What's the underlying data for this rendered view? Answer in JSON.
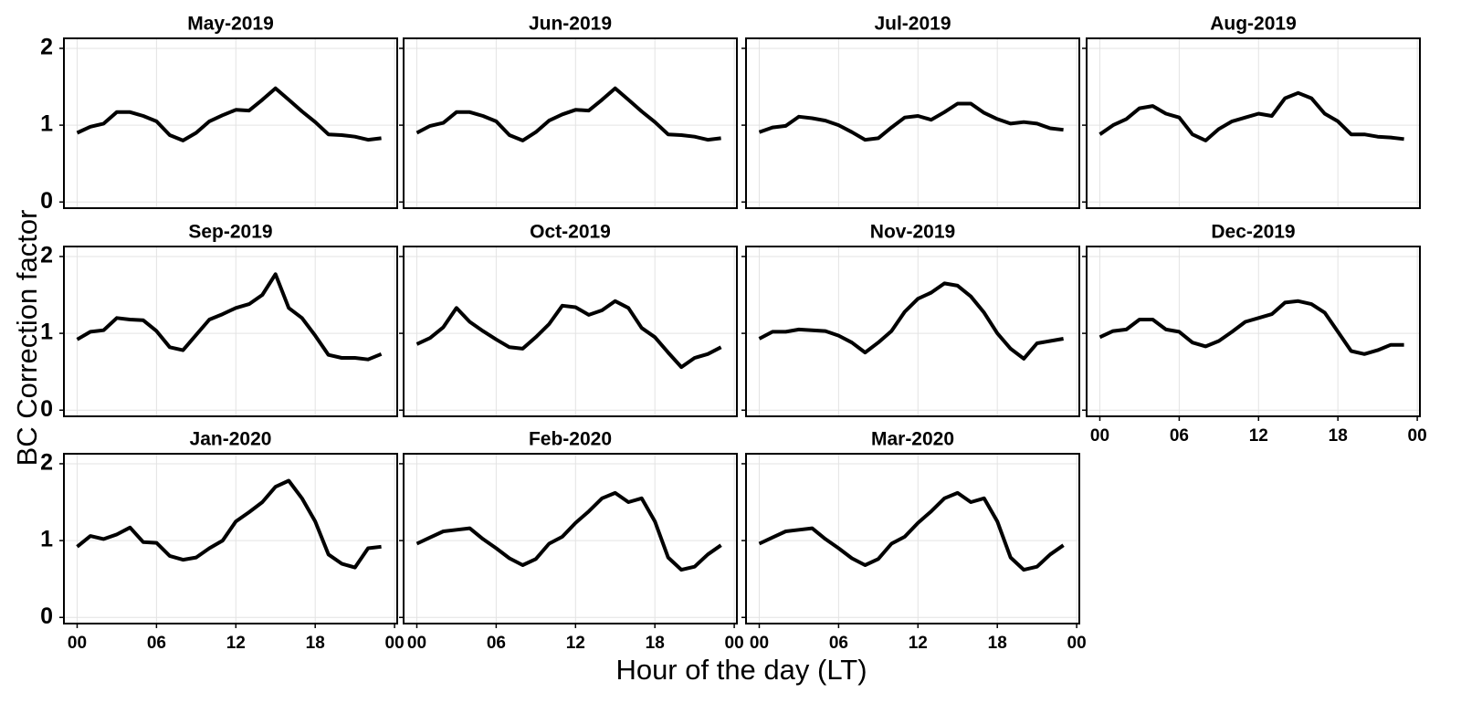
{
  "ylabel": "BC Correction factor",
  "xlabel": "Hour of the day (LT)",
  "chart_data": [
    {
      "type": "line",
      "title": "May-2019",
      "color": "#000000",
      "grid": true,
      "show_xtick_labels": false,
      "show_ytick_labels": true,
      "xlim": [
        -1,
        24.2
      ],
      "ylim": [
        -0.08,
        2.13
      ],
      "xticks": [
        {
          "value": 0,
          "label": "00"
        },
        {
          "value": 6,
          "label": "06"
        },
        12,
        18,
        {
          "value": 24,
          "label": "00"
        }
      ],
      "yticks": [
        0,
        1,
        2
      ],
      "x": [
        0,
        1,
        2,
        3,
        4,
        5,
        6,
        7,
        8,
        9,
        10,
        11,
        12,
        13,
        14,
        15,
        16,
        17,
        18,
        19,
        20,
        21,
        22,
        23
      ],
      "values": [
        0.9,
        0.98,
        1.02,
        1.17,
        1.17,
        1.12,
        1.05,
        0.87,
        0.8,
        0.9,
        1.05,
        1.13,
        1.2,
        1.19,
        1.33,
        1.48,
        1.33,
        1.18,
        1.04,
        0.88,
        0.87,
        0.85,
        0.81,
        0.83
      ]
    },
    {
      "type": "line",
      "title": "Jun-2019",
      "color": "#000000",
      "grid": true,
      "show_xtick_labels": false,
      "show_ytick_labels": false,
      "xlim": [
        -1,
        24.2
      ],
      "ylim": [
        -0.08,
        2.13
      ],
      "xticks": [
        {
          "value": 0,
          "label": "00"
        },
        {
          "value": 6,
          "label": "06"
        },
        12,
        18,
        {
          "value": 24,
          "label": "00"
        }
      ],
      "yticks": [
        0,
        1,
        2
      ],
      "x": [
        0,
        1,
        2,
        3,
        4,
        5,
        6,
        7,
        8,
        9,
        10,
        11,
        12,
        13,
        14,
        15,
        16,
        17,
        18,
        19,
        20,
        21,
        22,
        23
      ],
      "values": [
        0.9,
        0.99,
        1.03,
        1.17,
        1.17,
        1.12,
        1.05,
        0.87,
        0.8,
        0.91,
        1.06,
        1.14,
        1.2,
        1.19,
        1.33,
        1.48,
        1.33,
        1.18,
        1.04,
        0.88,
        0.87,
        0.85,
        0.81,
        0.83
      ]
    },
    {
      "type": "line",
      "title": "Jul-2019",
      "color": "#000000",
      "grid": true,
      "show_xtick_labels": false,
      "show_ytick_labels": false,
      "xlim": [
        -1,
        24.2
      ],
      "ylim": [
        -0.08,
        2.13
      ],
      "xticks": [
        {
          "value": 0,
          "label": "00"
        },
        {
          "value": 6,
          "label": "06"
        },
        12,
        18,
        {
          "value": 24,
          "label": "00"
        }
      ],
      "yticks": [
        0,
        1,
        2
      ],
      "x": [
        0,
        1,
        2,
        3,
        4,
        5,
        6,
        7,
        8,
        9,
        10,
        11,
        12,
        13,
        14,
        15,
        16,
        17,
        18,
        19,
        20,
        21,
        22,
        23
      ],
      "values": [
        0.91,
        0.97,
        0.99,
        1.11,
        1.09,
        1.06,
        1.0,
        0.91,
        0.81,
        0.83,
        0.97,
        1.1,
        1.12,
        1.07,
        1.17,
        1.28,
        1.28,
        1.16,
        1.08,
        1.02,
        1.04,
        1.02,
        0.96,
        0.94
      ]
    },
    {
      "type": "line",
      "title": "Aug-2019",
      "color": "#000000",
      "grid": true,
      "show_xtick_labels": false,
      "show_ytick_labels": false,
      "xlim": [
        -1,
        24.2
      ],
      "ylim": [
        -0.08,
        2.13
      ],
      "xticks": [
        {
          "value": 0,
          "label": "00"
        },
        {
          "value": 6,
          "label": "06"
        },
        12,
        18,
        {
          "value": 24,
          "label": "00"
        }
      ],
      "yticks": [
        0,
        1,
        2
      ],
      "x": [
        0,
        1,
        2,
        3,
        4,
        5,
        6,
        7,
        8,
        9,
        10,
        11,
        12,
        13,
        14,
        15,
        16,
        17,
        18,
        19,
        20,
        21,
        22,
        23
      ],
      "values": [
        0.88,
        1.0,
        1.08,
        1.22,
        1.25,
        1.15,
        1.1,
        0.88,
        0.8,
        0.95,
        1.05,
        1.1,
        1.15,
        1.12,
        1.35,
        1.42,
        1.35,
        1.15,
        1.05,
        0.88,
        0.88,
        0.85,
        0.84,
        0.82
      ]
    },
    {
      "type": "line",
      "title": "Sep-2019",
      "color": "#000000",
      "grid": true,
      "show_xtick_labels": false,
      "show_ytick_labels": true,
      "xlim": [
        -1,
        24.2
      ],
      "ylim": [
        -0.08,
        2.13
      ],
      "xticks": [
        {
          "value": 0,
          "label": "00"
        },
        {
          "value": 6,
          "label": "06"
        },
        12,
        18,
        {
          "value": 24,
          "label": "00"
        }
      ],
      "yticks": [
        0,
        1,
        2
      ],
      "x": [
        0,
        1,
        2,
        3,
        4,
        5,
        6,
        7,
        8,
        9,
        10,
        11,
        12,
        13,
        14,
        15,
        16,
        17,
        18,
        19,
        20,
        21,
        22,
        23
      ],
      "values": [
        0.92,
        1.02,
        1.04,
        1.2,
        1.18,
        1.17,
        1.03,
        0.82,
        0.78,
        0.98,
        1.18,
        1.25,
        1.33,
        1.38,
        1.5,
        1.77,
        1.33,
        1.2,
        0.97,
        0.72,
        0.68,
        0.68,
        0.66,
        0.73
      ]
    },
    {
      "type": "line",
      "title": "Oct-2019",
      "color": "#000000",
      "grid": true,
      "show_xtick_labels": false,
      "show_ytick_labels": false,
      "xlim": [
        -1,
        24.2
      ],
      "ylim": [
        -0.08,
        2.13
      ],
      "xticks": [
        {
          "value": 0,
          "label": "00"
        },
        {
          "value": 6,
          "label": "06"
        },
        12,
        18,
        {
          "value": 24,
          "label": "00"
        }
      ],
      "yticks": [
        0,
        1,
        2
      ],
      "x": [
        0,
        1,
        2,
        3,
        4,
        5,
        6,
        7,
        8,
        9,
        10,
        11,
        12,
        13,
        14,
        15,
        16,
        17,
        18,
        19,
        20,
        21,
        22,
        23
      ],
      "values": [
        0.86,
        0.94,
        1.08,
        1.33,
        1.15,
        1.03,
        0.92,
        0.82,
        0.8,
        0.95,
        1.12,
        1.36,
        1.34,
        1.24,
        1.3,
        1.42,
        1.33,
        1.07,
        0.95,
        0.75,
        0.56,
        0.68,
        0.73,
        0.82
      ]
    },
    {
      "type": "line",
      "title": "Nov-2019",
      "color": "#000000",
      "grid": true,
      "show_xtick_labels": false,
      "show_ytick_labels": false,
      "xlim": [
        -1,
        24.2
      ],
      "ylim": [
        -0.08,
        2.13
      ],
      "xticks": [
        {
          "value": 0,
          "label": "00"
        },
        {
          "value": 6,
          "label": "06"
        },
        12,
        18,
        {
          "value": 24,
          "label": "00"
        }
      ],
      "yticks": [
        0,
        1,
        2
      ],
      "x": [
        0,
        1,
        2,
        3,
        4,
        5,
        6,
        7,
        8,
        9,
        10,
        11,
        12,
        13,
        14,
        15,
        16,
        17,
        18,
        19,
        20,
        21,
        22,
        23
      ],
      "values": [
        0.93,
        1.02,
        1.02,
        1.05,
        1.04,
        1.03,
        0.97,
        0.88,
        0.75,
        0.88,
        1.03,
        1.28,
        1.45,
        1.53,
        1.65,
        1.62,
        1.48,
        1.27,
        1.0,
        0.8,
        0.67,
        0.87,
        0.9,
        0.93
      ]
    },
    {
      "type": "line",
      "title": "Dec-2019",
      "color": "#000000",
      "grid": true,
      "show_xtick_labels": true,
      "show_ytick_labels": false,
      "xlim": [
        -1,
        24.2
      ],
      "ylim": [
        -0.08,
        2.13
      ],
      "xticks": [
        {
          "value": 0,
          "label": "00"
        },
        {
          "value": 6,
          "label": "06"
        },
        12,
        18,
        {
          "value": 24,
          "label": "00"
        }
      ],
      "yticks": [
        0,
        1,
        2
      ],
      "x": [
        0,
        1,
        2,
        3,
        4,
        5,
        6,
        7,
        8,
        9,
        10,
        11,
        12,
        13,
        14,
        15,
        16,
        17,
        18,
        19,
        20,
        21,
        22,
        23
      ],
      "values": [
        0.95,
        1.03,
        1.05,
        1.18,
        1.18,
        1.05,
        1.02,
        0.88,
        0.83,
        0.9,
        1.02,
        1.15,
        1.2,
        1.25,
        1.4,
        1.42,
        1.38,
        1.27,
        1.02,
        0.77,
        0.73,
        0.78,
        0.85,
        0.85
      ]
    },
    {
      "type": "line",
      "title": "Jan-2020",
      "color": "#000000",
      "grid": true,
      "show_xtick_labels": true,
      "show_ytick_labels": true,
      "xlim": [
        -1,
        24.2
      ],
      "ylim": [
        -0.08,
        2.13
      ],
      "xticks": [
        {
          "value": 0,
          "label": "00"
        },
        {
          "value": 6,
          "label": "06"
        },
        12,
        18,
        {
          "value": 24,
          "label": "00"
        }
      ],
      "yticks": [
        0,
        1,
        2
      ],
      "x": [
        0,
        1,
        2,
        3,
        4,
        5,
        6,
        7,
        8,
        9,
        10,
        11,
        12,
        13,
        14,
        15,
        16,
        17,
        18,
        19,
        20,
        21,
        22,
        23
      ],
      "values": [
        0.92,
        1.06,
        1.02,
        1.08,
        1.17,
        0.98,
        0.97,
        0.8,
        0.75,
        0.78,
        0.9,
        1.0,
        1.25,
        1.37,
        1.5,
        1.7,
        1.78,
        1.55,
        1.25,
        0.82,
        0.7,
        0.65,
        0.9,
        0.92
      ]
    },
    {
      "type": "line",
      "title": "Feb-2020",
      "color": "#000000",
      "grid": true,
      "show_xtick_labels": true,
      "show_ytick_labels": false,
      "xlim": [
        -1,
        24.2
      ],
      "ylim": [
        -0.08,
        2.13
      ],
      "xticks": [
        {
          "value": 0,
          "label": "00"
        },
        {
          "value": 6,
          "label": "06"
        },
        12,
        18,
        {
          "value": 24,
          "label": "00"
        }
      ],
      "yticks": [
        0,
        1,
        2
      ],
      "x": [
        0,
        1,
        2,
        3,
        4,
        5,
        6,
        7,
        8,
        9,
        10,
        11,
        12,
        13,
        14,
        15,
        16,
        17,
        18,
        19,
        20,
        21,
        22,
        23
      ],
      "values": [
        0.96,
        1.04,
        1.12,
        1.14,
        1.16,
        1.02,
        0.9,
        0.77,
        0.68,
        0.76,
        0.96,
        1.05,
        1.23,
        1.38,
        1.55,
        1.62,
        1.5,
        1.55,
        1.25,
        0.78,
        0.62,
        0.66,
        0.82,
        0.94
      ]
    },
    {
      "type": "line",
      "title": "Mar-2020",
      "color": "#000000",
      "grid": true,
      "show_xtick_labels": true,
      "show_ytick_labels": false,
      "xlim": [
        -1,
        24.2
      ],
      "ylim": [
        -0.08,
        2.13
      ],
      "xticks": [
        {
          "value": 0,
          "label": "00"
        },
        {
          "value": 6,
          "label": "06"
        },
        12,
        18,
        {
          "value": 24,
          "label": "00"
        }
      ],
      "yticks": [
        0,
        1,
        2
      ],
      "x": [
        0,
        1,
        2,
        3,
        4,
        5,
        6,
        7,
        8,
        9,
        10,
        11,
        12,
        13,
        14,
        15,
        16,
        17,
        18,
        19,
        20,
        21,
        22,
        23
      ],
      "values": [
        0.96,
        1.04,
        1.12,
        1.14,
        1.16,
        1.02,
        0.9,
        0.77,
        0.68,
        0.76,
        0.96,
        1.05,
        1.23,
        1.38,
        1.55,
        1.62,
        1.5,
        1.55,
        1.25,
        0.78,
        0.62,
        0.66,
        0.82,
        0.94
      ]
    }
  ]
}
